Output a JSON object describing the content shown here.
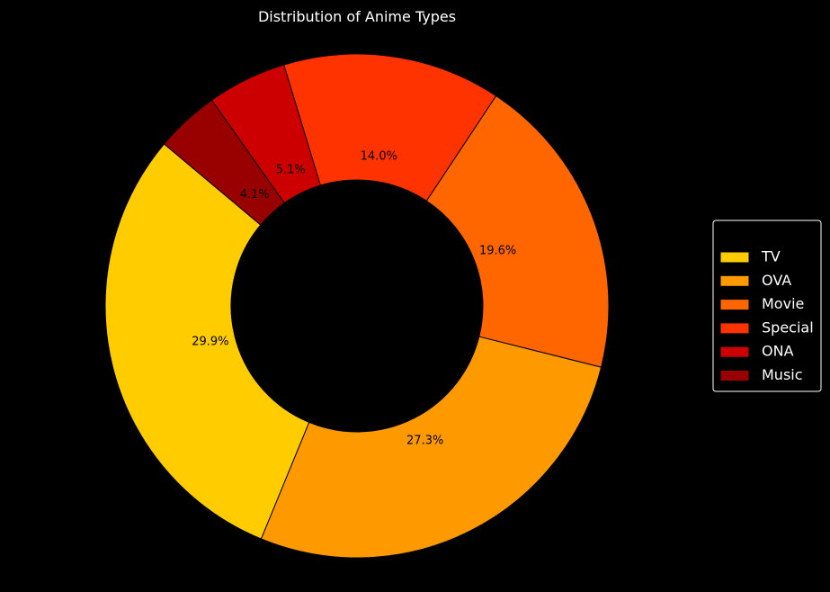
{
  "chart_data": {
    "type": "pie",
    "variant": "donut",
    "title": "Distribution of Anime Types",
    "categories": [
      "TV",
      "OVA",
      "Movie",
      "Special",
      "ONA",
      "Music"
    ],
    "values": [
      29.9,
      27.3,
      19.6,
      14.0,
      5.1,
      4.1
    ],
    "value_labels": [
      "29.9%",
      "27.3%",
      "19.6%",
      "14.0%",
      "5.1%",
      "4.1%"
    ],
    "colors": [
      "#ffcc00",
      "#ff9900",
      "#ff6600",
      "#ff3300",
      "#cc0000",
      "#990000"
    ],
    "background": "#000000",
    "legend_position": "right"
  }
}
